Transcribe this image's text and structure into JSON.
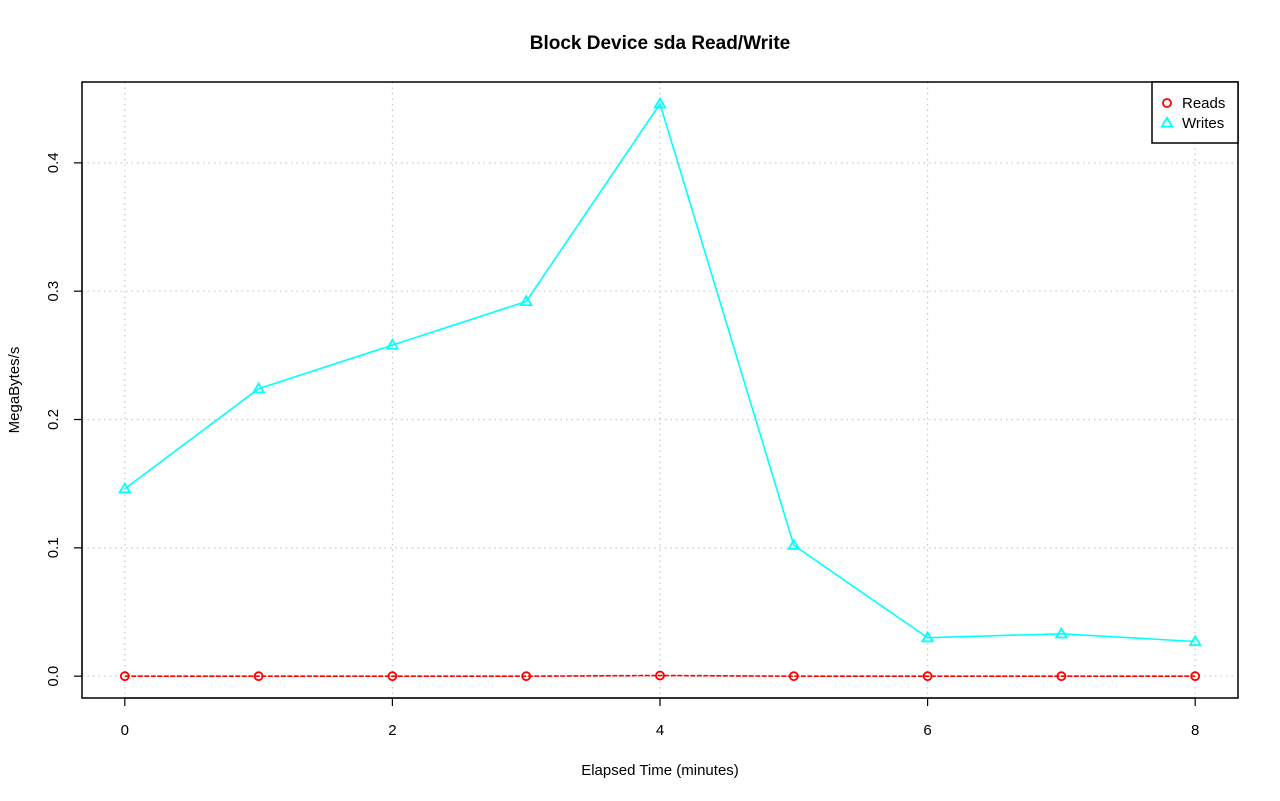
{
  "chart_data": {
    "type": "line",
    "title": "Block Device sda Read/Write",
    "xlabel": "Elapsed Time (minutes)",
    "ylabel": "MegaBytes/s",
    "xlim": [
      -0.32,
      8.32
    ],
    "ylim": [
      -0.017,
      0.463
    ],
    "xticks": [
      0,
      2,
      4,
      6,
      8
    ],
    "yticks": [
      0.0,
      0.1,
      0.2,
      0.3,
      0.4
    ],
    "ytick_labels": [
      "0.0",
      "0.1",
      "0.2",
      "0.3",
      "0.4"
    ],
    "grid": true,
    "legend_position": "top-right",
    "x": [
      0,
      1,
      2,
      3,
      4,
      5,
      6,
      7,
      8
    ],
    "series": [
      {
        "name": "Reads",
        "color": "#ff0000",
        "marker": "circle",
        "values": [
          0.0,
          0.0,
          0.0,
          0.0,
          0.0005,
          0.0,
          0.0,
          0.0,
          0.0
        ]
      },
      {
        "name": "Writes",
        "color": "#00ffff",
        "marker": "triangle",
        "values": [
          0.146,
          0.224,
          0.258,
          0.292,
          0.446,
          0.102,
          0.03,
          0.033,
          0.027
        ]
      }
    ]
  }
}
